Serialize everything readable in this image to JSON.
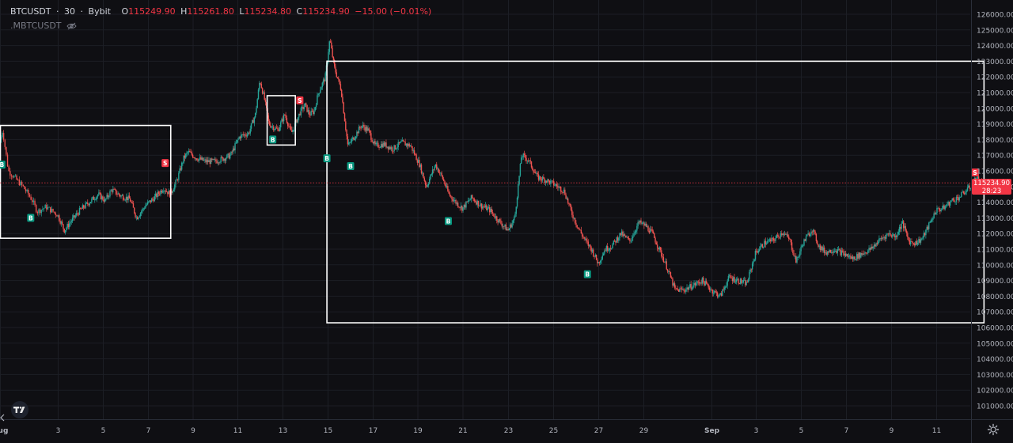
{
  "header": {
    "symbol": "BTCUSDT",
    "sep1": "·",
    "interval": "30",
    "sep2": "·",
    "exchange": "Bybit",
    "open_label": "O",
    "open": "115249.90",
    "high_label": "H",
    "high": "115261.80",
    "low_label": "L",
    "low": "115234.80",
    "close_label": "C",
    "close": "115234.90",
    "change": "−15.00 (−0.01%)",
    "indicator": ".MBTCUSDT"
  },
  "price_tag": {
    "price": "115234.90",
    "countdown": "28:23"
  },
  "colors": {
    "background": "#0f0f13",
    "up": "#26a69a",
    "down": "#ef5350",
    "buy": "#089981",
    "sell": "#f23645",
    "box": "#ffffff"
  },
  "icons": {
    "logo": "tradingview-logo-icon",
    "eye": "eye-crossed-icon",
    "settings": "gear-icon"
  },
  "chart_data": {
    "type": "line",
    "ylim": [
      100000,
      126500
    ],
    "x_ticks": [
      "Aug",
      "3",
      "5",
      "7",
      "9",
      "11",
      "13",
      "15",
      "17",
      "19",
      "21",
      "23",
      "25",
      "27",
      "29",
      "Sep",
      "3",
      "5",
      "7",
      "9",
      "11"
    ],
    "y_ticks": [
      "126000.00",
      "125000.00",
      "124000.00",
      "123000.00",
      "122000.00",
      "121000.00",
      "120000.00",
      "119000.00",
      "118000.00",
      "117000.00",
      "116000.00",
      "115000.00",
      "114000.00",
      "113000.00",
      "112000.00",
      "111000.00",
      "110000.00",
      "109000.00",
      "108000.00",
      "107000.00",
      "106000.00",
      "105000.00",
      "104000.00",
      "103000.00",
      "102000.00",
      "101000.00"
    ],
    "x_day_range": [
      0,
      43
    ],
    "series": [
      {
        "values": [
          [
            0.0,
            117800
          ],
          [
            0.1,
            118600
          ],
          [
            0.3,
            116000
          ],
          [
            0.8,
            115000
          ],
          [
            1.1,
            114200
          ],
          [
            1.3,
            113400
          ],
          [
            1.6,
            113700
          ],
          [
            2.0,
            113200
          ],
          [
            2.3,
            112200
          ],
          [
            2.6,
            112800
          ],
          [
            3.0,
            113500
          ],
          [
            3.4,
            114000
          ],
          [
            3.8,
            114500
          ],
          [
            4.1,
            114100
          ],
          [
            4.4,
            114800
          ],
          [
            4.8,
            114400
          ],
          [
            5.2,
            114200
          ],
          [
            5.5,
            113000
          ],
          [
            5.9,
            113800
          ],
          [
            6.3,
            114300
          ],
          [
            6.7,
            114900
          ],
          [
            7.0,
            114500
          ],
          [
            7.3,
            115400
          ],
          [
            7.6,
            116800
          ],
          [
            7.8,
            117200
          ],
          [
            8.2,
            116800
          ],
          [
            8.6,
            116600
          ],
          [
            9.0,
            116600
          ],
          [
            9.4,
            116800
          ],
          [
            9.7,
            117000
          ],
          [
            10.1,
            118200
          ],
          [
            10.5,
            118400
          ],
          [
            10.8,
            119600
          ],
          [
            11.0,
            121800
          ],
          [
            11.2,
            120600
          ],
          [
            11.4,
            119000
          ],
          [
            11.8,
            118600
          ],
          [
            12.1,
            119600
          ],
          [
            12.4,
            118400
          ],
          [
            12.8,
            119800
          ],
          [
            13.0,
            120200
          ],
          [
            13.2,
            119600
          ],
          [
            13.4,
            119800
          ],
          [
            13.6,
            121000
          ],
          [
            13.9,
            122000
          ],
          [
            14.1,
            124400
          ],
          [
            14.3,
            122600
          ],
          [
            14.6,
            121200
          ],
          [
            14.9,
            117600
          ],
          [
            15.2,
            118200
          ],
          [
            15.5,
            118900
          ],
          [
            15.8,
            118600
          ],
          [
            16.1,
            117600
          ],
          [
            16.5,
            117700
          ],
          [
            16.9,
            117400
          ],
          [
            17.3,
            117800
          ],
          [
            17.7,
            117600
          ],
          [
            18.1,
            116400
          ],
          [
            18.4,
            115000
          ],
          [
            18.8,
            116400
          ],
          [
            19.1,
            115600
          ],
          [
            19.4,
            114500
          ],
          [
            19.7,
            114000
          ],
          [
            20.0,
            113600
          ],
          [
            20.4,
            114300
          ],
          [
            20.8,
            113800
          ],
          [
            21.2,
            113500
          ],
          [
            21.6,
            112800
          ],
          [
            22.0,
            112200
          ],
          [
            22.3,
            113000
          ],
          [
            22.6,
            117000
          ],
          [
            22.9,
            116700
          ],
          [
            23.3,
            115600
          ],
          [
            23.7,
            115400
          ],
          [
            24.1,
            115100
          ],
          [
            24.5,
            114700
          ],
          [
            24.8,
            113400
          ],
          [
            25.1,
            112400
          ],
          [
            25.4,
            111600
          ],
          [
            25.7,
            111000
          ],
          [
            26.0,
            110100
          ],
          [
            26.3,
            111000
          ],
          [
            26.6,
            111200
          ],
          [
            27.0,
            112000
          ],
          [
            27.4,
            111500
          ],
          [
            27.8,
            112700
          ],
          [
            28.1,
            112500
          ],
          [
            28.4,
            112000
          ],
          [
            28.7,
            111000
          ],
          [
            29.0,
            110000
          ],
          [
            29.4,
            108400
          ],
          [
            29.8,
            108400
          ],
          [
            30.2,
            108700
          ],
          [
            30.6,
            109000
          ],
          [
            31.0,
            108400
          ],
          [
            31.4,
            108000
          ],
          [
            31.8,
            109200
          ],
          [
            32.2,
            109000
          ],
          [
            32.6,
            108800
          ],
          [
            33.0,
            110800
          ],
          [
            33.4,
            111400
          ],
          [
            33.8,
            111600
          ],
          [
            34.2,
            112100
          ],
          [
            34.5,
            111600
          ],
          [
            34.8,
            110200
          ],
          [
            35.1,
            111400
          ],
          [
            35.5,
            112300
          ],
          [
            35.8,
            111200
          ],
          [
            36.1,
            110800
          ],
          [
            36.5,
            111000
          ],
          [
            36.9,
            110700
          ],
          [
            37.3,
            110400
          ],
          [
            37.7,
            110700
          ],
          [
            38.1,
            111000
          ],
          [
            38.5,
            111600
          ],
          [
            38.9,
            112000
          ],
          [
            39.2,
            111800
          ],
          [
            39.5,
            112700
          ],
          [
            39.8,
            111500
          ],
          [
            40.1,
            111400
          ],
          [
            40.4,
            111700
          ],
          [
            40.7,
            112600
          ],
          [
            41.0,
            113500
          ],
          [
            41.3,
            113600
          ],
          [
            41.7,
            114100
          ],
          [
            42.0,
            114300
          ],
          [
            42.3,
            114700
          ],
          [
            42.6,
            115100
          ],
          [
            42.8,
            115600
          ],
          [
            43.0,
            115235
          ]
        ]
      }
    ],
    "signals": [
      {
        "label": "B",
        "x": 0.05,
        "y": 116400,
        "side": "buy"
      },
      {
        "label": "B",
        "x": 1.05,
        "y": 113000,
        "side": "buy"
      },
      {
        "label": "S",
        "x": 6.75,
        "y": 116500,
        "side": "sell"
      },
      {
        "label": "B",
        "x": 11.55,
        "y": 118000,
        "side": "buy"
      },
      {
        "label": "S",
        "x": 12.75,
        "y": 120500,
        "side": "sell"
      },
      {
        "label": "B",
        "x": 13.95,
        "y": 116800,
        "side": "buy"
      },
      {
        "label": "B",
        "x": 15.0,
        "y": 116300,
        "side": "buy"
      },
      {
        "label": "B",
        "x": 19.35,
        "y": 112800,
        "side": "buy"
      },
      {
        "label": "B",
        "x": 25.5,
        "y": 109400,
        "side": "buy"
      },
      {
        "label": "S",
        "x": 42.7,
        "y": 115900,
        "side": "sell"
      }
    ],
    "boxes": [
      {
        "x": [
          0.0,
          7.0
        ],
        "y": [
          111700,
          118900
        ]
      },
      {
        "x": [
          11.3,
          12.55
        ],
        "y": [
          117650,
          120800
        ]
      },
      {
        "x": [
          13.95,
          43.1
        ],
        "y": [
          106300,
          123000
        ]
      }
    ],
    "last_price": 115234.9
  }
}
